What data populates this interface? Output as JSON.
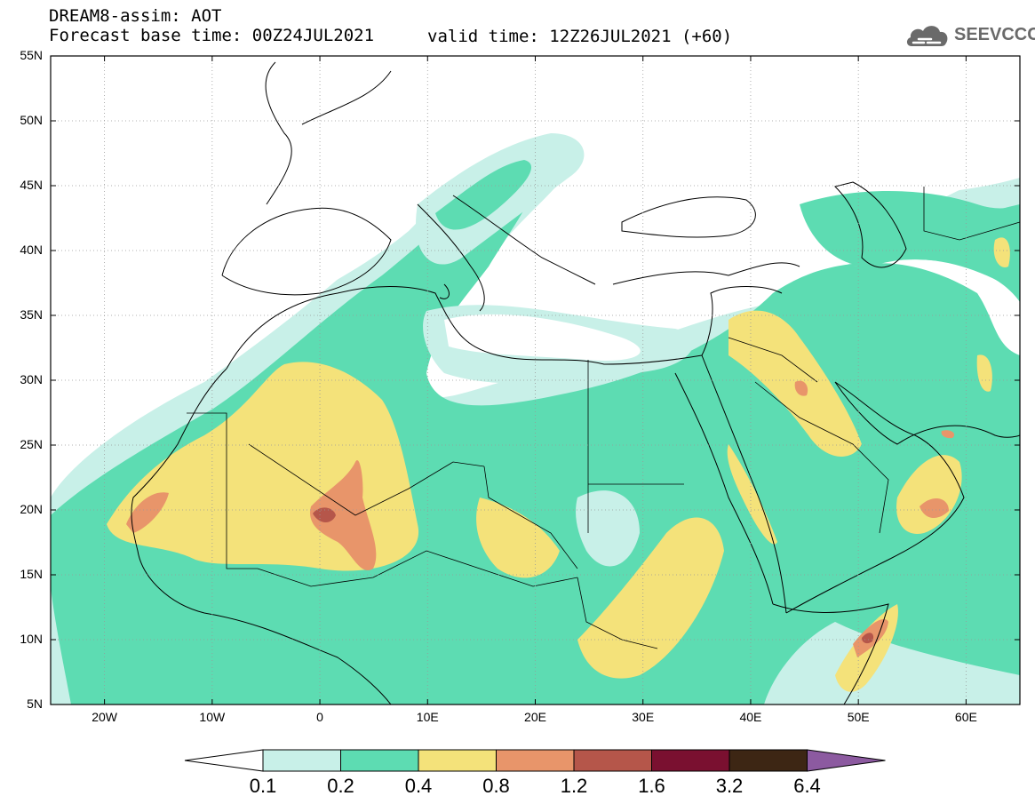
{
  "header": {
    "title": "DREAM8-assim: AOT",
    "base_time": "Forecast base time: 00Z24JUL2021",
    "valid_time": "valid time: 12Z26JUL2021 (+60)"
  },
  "logo": {
    "text": "SEEVCCC",
    "icon": "cloud-icon"
  },
  "map": {
    "variable": "Aerosol Optical Thickness",
    "lat_range": [
      5,
      55
    ],
    "lon_range": [
      -25,
      65
    ],
    "lat_labels": [
      "55N",
      "50N",
      "45N",
      "40N",
      "35N",
      "30N",
      "25N",
      "20N",
      "15N",
      "10N",
      "5N"
    ],
    "lon_labels": [
      "20W",
      "10W",
      "0",
      "10E",
      "20E",
      "30E",
      "40E",
      "50E",
      "60E"
    ],
    "grid": "dotted"
  },
  "colorbar": {
    "labels": [
      "0.1",
      "0.2",
      "0.4",
      "0.8",
      "1.2",
      "1.6",
      "3.2",
      "6.4"
    ],
    "colors": [
      "#c8f0e8",
      "#5ddcb2",
      "#f4e27a",
      "#e8956a",
      "#b5564a",
      "#7a1030",
      "#3d2614",
      "#8c5aa0"
    ],
    "under_color": "#ffffff"
  }
}
